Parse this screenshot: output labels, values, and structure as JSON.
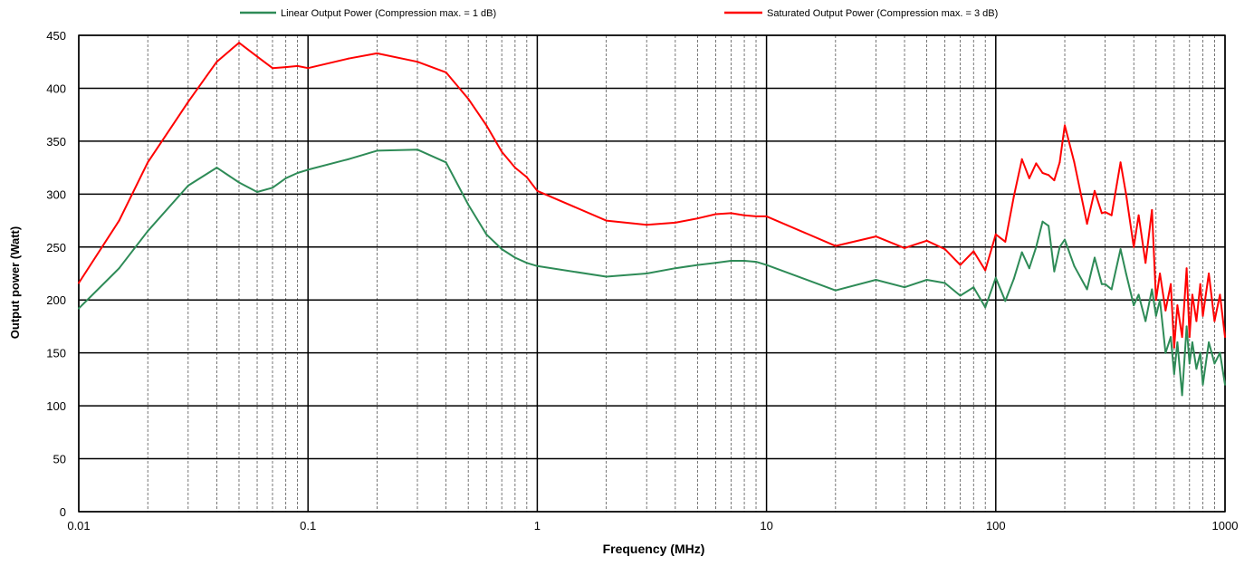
{
  "chart_data": {
    "type": "line",
    "title": "",
    "xlabel": "Frequency (MHz)",
    "ylabel": "Output power (Watt)",
    "x_scale": "log",
    "xlim": [
      0.01,
      1000
    ],
    "ylim": [
      0,
      450
    ],
    "x_ticks": [
      0.01,
      0.1,
      1,
      10,
      100,
      1000
    ],
    "x_tick_labels": [
      "0.01",
      "0.1",
      "1",
      "10",
      "100",
      "1000"
    ],
    "y_ticks": [
      0,
      50,
      100,
      150,
      200,
      250,
      300,
      350,
      400,
      450
    ],
    "y_tick_labels": [
      "0",
      "50",
      "100",
      "150",
      "200",
      "250",
      "300",
      "350",
      "400",
      "450"
    ],
    "grid": true,
    "legend_position": "top",
    "series": [
      {
        "name": "Linear Output Power (Compression max. =  1 dB)",
        "color": "#2e8b57",
        "x": [
          0.01,
          0.015,
          0.02,
          0.03,
          0.04,
          0.05,
          0.06,
          0.07,
          0.08,
          0.09,
          0.1,
          0.15,
          0.2,
          0.3,
          0.4,
          0.5,
          0.6,
          0.7,
          0.8,
          0.9,
          1,
          2,
          3,
          4,
          5,
          6,
          7,
          8,
          9,
          10,
          20,
          30,
          40,
          50,
          60,
          70,
          80,
          90,
          100,
          110,
          120,
          130,
          140,
          150,
          160,
          170,
          180,
          190,
          200,
          220,
          250,
          270,
          290,
          300,
          320,
          350,
          370,
          400,
          420,
          450,
          480,
          500,
          520,
          550,
          580,
          600,
          620,
          650,
          680,
          700,
          720,
          750,
          780,
          800,
          850,
          900,
          950,
          1000
        ],
        "values": [
          192,
          230,
          265,
          308,
          325,
          311,
          302,
          306,
          315,
          320,
          323,
          333,
          341,
          342,
          330,
          290,
          262,
          248,
          240,
          235,
          232,
          222,
          225,
          230,
          233,
          235,
          237,
          237,
          236,
          233,
          209,
          219,
          212,
          219,
          216,
          204,
          212,
          193,
          221,
          199,
          220,
          245,
          230,
          250,
          274,
          270,
          227,
          250,
          257,
          232,
          210,
          240,
          215,
          215,
          210,
          248,
          225,
          195,
          205,
          180,
          210,
          185,
          200,
          150,
          165,
          130,
          160,
          110,
          175,
          140,
          160,
          135,
          150,
          120,
          160,
          140,
          150,
          120
        ]
      },
      {
        "name": "Saturated Output Power (Compression max. =  3 dB)",
        "color": "#ff0000",
        "x": [
          0.01,
          0.015,
          0.02,
          0.03,
          0.04,
          0.05,
          0.06,
          0.07,
          0.08,
          0.09,
          0.1,
          0.15,
          0.2,
          0.3,
          0.4,
          0.5,
          0.6,
          0.7,
          0.8,
          0.9,
          1,
          2,
          3,
          4,
          5,
          6,
          7,
          8,
          9,
          10,
          20,
          30,
          40,
          50,
          60,
          70,
          80,
          90,
          100,
          110,
          120,
          130,
          140,
          150,
          160,
          170,
          180,
          190,
          200,
          220,
          250,
          270,
          290,
          300,
          320,
          350,
          370,
          400,
          420,
          450,
          480,
          500,
          520,
          550,
          580,
          600,
          620,
          650,
          680,
          700,
          720,
          750,
          780,
          800,
          850,
          900,
          950,
          1000
        ],
        "values": [
          216,
          275,
          330,
          387,
          425,
          443,
          430,
          419,
          420,
          421,
          419,
          428,
          433,
          425,
          415,
          390,
          365,
          340,
          325,
          316,
          303,
          275,
          271,
          273,
          277,
          281,
          282,
          280,
          279,
          279,
          251,
          260,
          249,
          256,
          248,
          233,
          246,
          228,
          262,
          255,
          298,
          333,
          315,
          329,
          320,
          318,
          313,
          330,
          365,
          330,
          272,
          303,
          282,
          283,
          280,
          330,
          300,
          250,
          280,
          235,
          285,
          200,
          225,
          190,
          215,
          155,
          195,
          165,
          230,
          165,
          205,
          180,
          215,
          185,
          225,
          180,
          205,
          165
        ]
      }
    ]
  }
}
